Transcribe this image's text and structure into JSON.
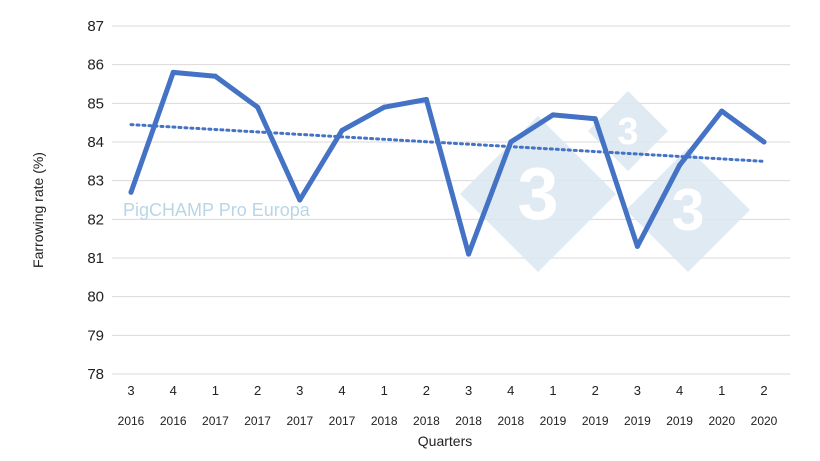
{
  "chart_data": {
    "type": "line",
    "xlabel": "Quarters",
    "ylabel": "Farrowing rate (%)",
    "ylim": [
      78,
      87
    ],
    "yticks": [
      78,
      79,
      80,
      81,
      82,
      83,
      84,
      85,
      86,
      87
    ],
    "grid": "horizontal",
    "categories": [
      {
        "quarter": "3",
        "year": "2016"
      },
      {
        "quarter": "4",
        "year": "2016"
      },
      {
        "quarter": "1",
        "year": "2017"
      },
      {
        "quarter": "2",
        "year": "2017"
      },
      {
        "quarter": "3",
        "year": "2017"
      },
      {
        "quarter": "4",
        "year": "2017"
      },
      {
        "quarter": "1",
        "year": "2018"
      },
      {
        "quarter": "2",
        "year": "2018"
      },
      {
        "quarter": "3",
        "year": "2018"
      },
      {
        "quarter": "4",
        "year": "2018"
      },
      {
        "quarter": "1",
        "year": "2019"
      },
      {
        "quarter": "2",
        "year": "2019"
      },
      {
        "quarter": "3",
        "year": "2019"
      },
      {
        "quarter": "4",
        "year": "2019"
      },
      {
        "quarter": "1",
        "year": "2020"
      },
      {
        "quarter": "2",
        "year": "2020"
      }
    ],
    "series": [
      {
        "values": [
          82.7,
          85.8,
          85.7,
          84.9,
          82.5,
          84.3,
          84.9,
          85.1,
          81.1,
          84.0,
          84.7,
          84.6,
          81.3,
          83.4,
          84.8,
          84.0
        ],
        "color": "#4472c4",
        "style": "solid"
      }
    ],
    "trendline": {
      "type": "linear",
      "start": 84.45,
      "end": 83.5,
      "color": "#4472c4",
      "style": "dotted"
    }
  },
  "watermark": {
    "text": "PigCHAMP Pro Europa",
    "logo_glyph": "3",
    "color": "#dbe6f1"
  }
}
